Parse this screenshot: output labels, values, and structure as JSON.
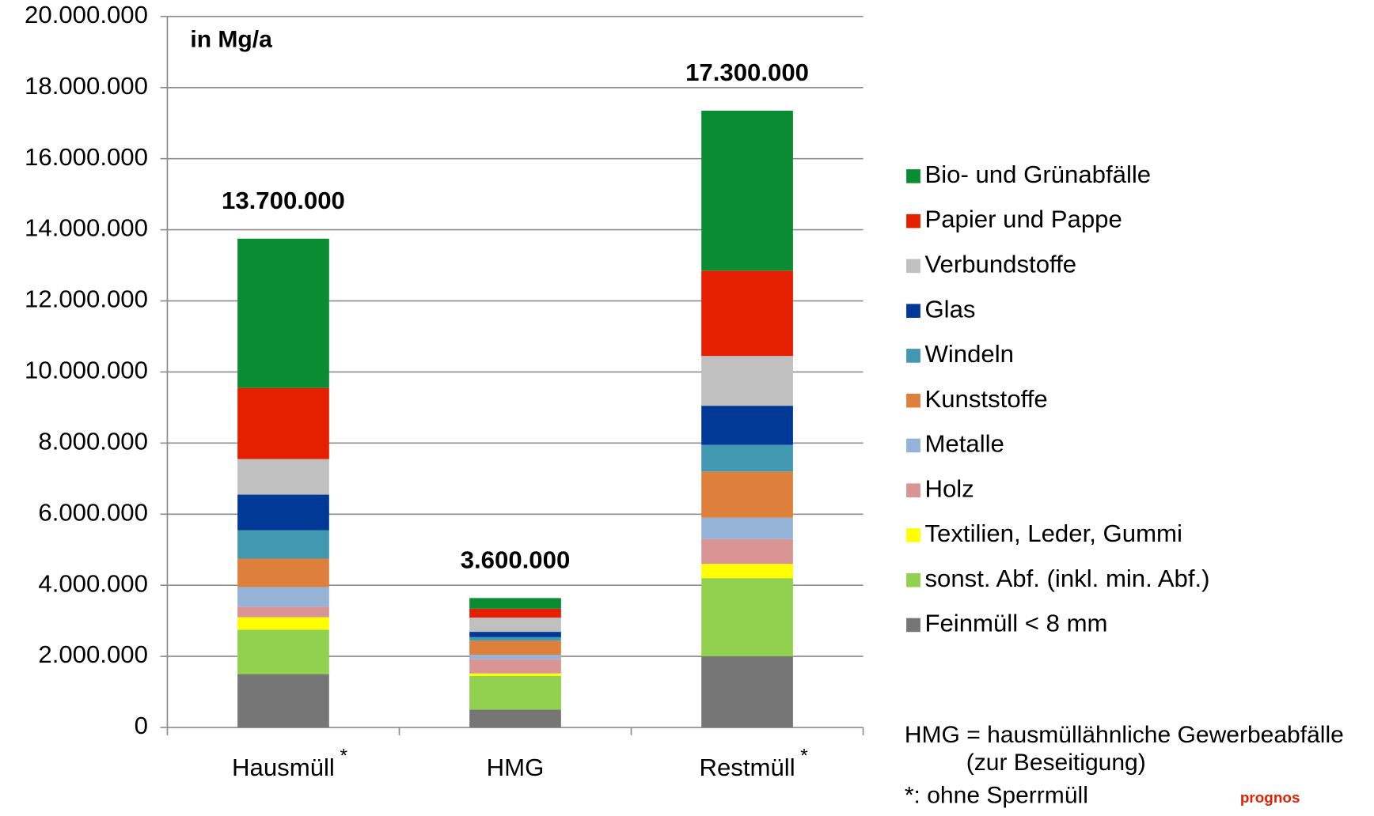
{
  "chart_data": {
    "type": "stacked_bar",
    "unit_label": "in Mg/a",
    "categories": [
      "Hausmüll",
      "HMG",
      "Restmüll"
    ],
    "category_notes": [
      "*",
      null,
      "*"
    ],
    "total_labels": [
      "13.700.000",
      "3.600.000",
      "17.300.000"
    ],
    "series": [
      {
        "name": "Feinmüll < 8 mm",
        "color": "#767676",
        "values": [
          1500000,
          500000,
          2000000
        ]
      },
      {
        "name": "sonst. Abf. (inkl. min. Abf.)",
        "color": "#92d050",
        "values": [
          1250000,
          950000,
          2200000
        ]
      },
      {
        "name": "Textilien, Leder, Gummi",
        "color": "#ffff00",
        "values": [
          350000,
          70000,
          400000
        ]
      },
      {
        "name": "Holz",
        "color": "#d99594",
        "values": [
          300000,
          400000,
          700000
        ]
      },
      {
        "name": "Metalle",
        "color": "#95b3d7",
        "values": [
          550000,
          120000,
          600000
        ]
      },
      {
        "name": "Kunststoffe",
        "color": "#dd803c",
        "values": [
          800000,
          400000,
          1300000
        ]
      },
      {
        "name": "Windeln",
        "color": "#4298b0",
        "values": [
          800000,
          100000,
          750000
        ]
      },
      {
        "name": "Glas",
        "color": "#003a96",
        "values": [
          1000000,
          150000,
          1100000
        ]
      },
      {
        "name": "Verbundstoffe",
        "color": "#c0c0c0",
        "values": [
          1000000,
          400000,
          1400000
        ]
      },
      {
        "name": "Papier und Pappe",
        "color": "#e52000",
        "values": [
          2000000,
          250000,
          2400000
        ]
      },
      {
        "name": "Bio- und Grünabfälle",
        "color": "#0a8c33",
        "values": [
          4200000,
          300000,
          4500000
        ]
      }
    ],
    "ylim": [
      0,
      20000000
    ],
    "yticks": [
      0,
      {
        "value": 2000000,
        "label": "2.000.000"
      },
      {
        "value": 4000000,
        "label": "4.000.000"
      },
      {
        "value": 6000000,
        "label": "6.000.000"
      },
      {
        "value": 8000000,
        "label": "8.000.000"
      },
      {
        "value": 10000000,
        "label": "10.000.000"
      },
      {
        "value": 12000000,
        "label": "12.000.000"
      },
      {
        "value": 14000000,
        "label": "14.000.000"
      },
      {
        "value": 16000000,
        "label": "16.000.000"
      },
      {
        "value": 18000000,
        "label": "18.000.000"
      },
      {
        "value": 20000000,
        "label": "20.000.000"
      }
    ],
    "grid": true,
    "legend": "right",
    "notes": [
      "HMG = hausmüllähnliche Gewerbeabfälle",
      "(zur Beseitigung)",
      "*: ohne Sperrmüll"
    ],
    "logo": "prognos"
  }
}
